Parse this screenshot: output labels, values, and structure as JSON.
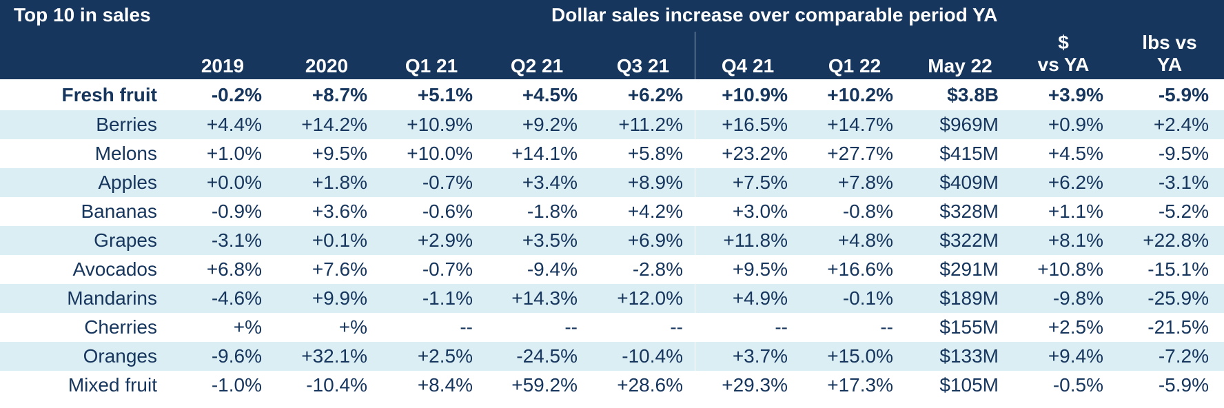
{
  "header": {
    "left_title": "Top 10 in sales",
    "right_title": "Dollar sales increase over comparable period YA",
    "columns": [
      {
        "line1": "",
        "line2": "2019"
      },
      {
        "line1": "",
        "line2": "2020"
      },
      {
        "line1": "",
        "line2": "Q1 21"
      },
      {
        "line1": "",
        "line2": "Q2 21"
      },
      {
        "line1": "",
        "line2": "Q3 21"
      },
      {
        "line1": "",
        "line2": "Q4 21"
      },
      {
        "line1": "",
        "line2": "Q1 22"
      },
      {
        "line1": "",
        "line2": "May 22"
      },
      {
        "line1": "$",
        "line2": "vs YA"
      },
      {
        "line1": "lbs vs",
        "line2": "YA"
      }
    ]
  },
  "rows": [
    {
      "label": "Fresh fruit",
      "values": [
        "-0.2%",
        "+8.7%",
        "+5.1%",
        "+4.5%",
        "+6.2%",
        "+10.9%",
        "+10.2%",
        "$3.8B",
        "+3.9%",
        "-5.9%"
      ]
    },
    {
      "label": "Berries",
      "values": [
        "+4.4%",
        "+14.2%",
        "+10.9%",
        "+9.2%",
        "+11.2%",
        "+16.5%",
        "+14.7%",
        "$969M",
        "+0.9%",
        "+2.4%"
      ]
    },
    {
      "label": "Melons",
      "values": [
        "+1.0%",
        "+9.5%",
        "+10.0%",
        "+14.1%",
        "+5.8%",
        "+23.2%",
        "+27.7%",
        "$415M",
        "+4.5%",
        "-9.5%"
      ]
    },
    {
      "label": "Apples",
      "values": [
        "+0.0%",
        "+1.8%",
        "-0.7%",
        "+3.4%",
        "+8.9%",
        "+7.5%",
        "+7.8%",
        "$409M",
        "+6.2%",
        "-3.1%"
      ]
    },
    {
      "label": "Bananas",
      "values": [
        "-0.9%",
        "+3.6%",
        "-0.6%",
        "-1.8%",
        "+4.2%",
        "+3.0%",
        "-0.8%",
        "$328M",
        "+1.1%",
        "-5.2%"
      ]
    },
    {
      "label": "Grapes",
      "values": [
        "-3.1%",
        "+0.1%",
        "+2.9%",
        "+3.5%",
        "+6.9%",
        "+11.8%",
        "+4.8%",
        "$322M",
        "+8.1%",
        "+22.8%"
      ]
    },
    {
      "label": "Avocados",
      "values": [
        "+6.8%",
        "+7.6%",
        "-0.7%",
        "-9.4%",
        "-2.8%",
        "+9.5%",
        "+16.6%",
        "$291M",
        "+10.8%",
        "-15.1%"
      ]
    },
    {
      "label": "Mandarins",
      "values": [
        "-4.6%",
        "+9.9%",
        "-1.1%",
        "+14.3%",
        "+12.0%",
        "+4.9%",
        "-0.1%",
        "$189M",
        "-9.8%",
        "-25.9%"
      ]
    },
    {
      "label": "Cherries",
      "values": [
        "+%",
        "+%",
        "--",
        "--",
        "--",
        "--",
        "--",
        "$155M",
        "+2.5%",
        "-21.5%"
      ]
    },
    {
      "label": "Oranges",
      "values": [
        "-9.6%",
        "+32.1%",
        "+2.5%",
        "-24.5%",
        "-10.4%",
        "+3.7%",
        "+15.0%",
        "$133M",
        "+9.4%",
        "-7.2%"
      ]
    },
    {
      "label": "Mixed fruit",
      "values": [
        "-1.0%",
        "-10.4%",
        "+8.4%",
        "+59.2%",
        "+28.6%",
        "+29.3%",
        "+17.3%",
        "$105M",
        "-0.5%",
        "-5.9%"
      ]
    }
  ],
  "colors": {
    "header_bg": "#17365d",
    "header_text": "#ffffff",
    "body_text": "#17365d",
    "stripe": "#dbeef4"
  }
}
